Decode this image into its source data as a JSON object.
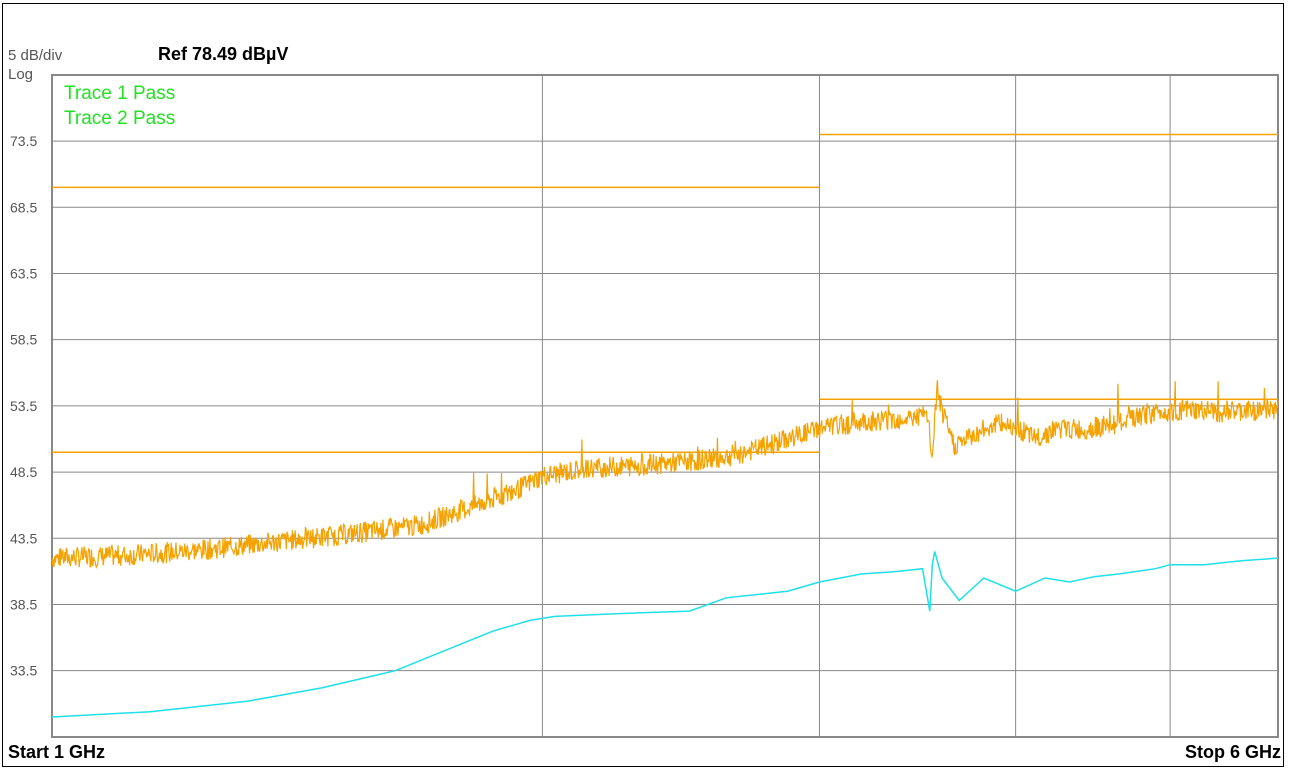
{
  "header": {
    "scale": "5 dB/div",
    "scale_type": "Log",
    "reference": "Ref 78.49 dBµV"
  },
  "footer": {
    "start": "Start 1 GHz",
    "stop": "Stop 6 GHz"
  },
  "colors": {
    "grid": "#888888",
    "trace1": "#f5a200",
    "trace2": "#1ee0e8",
    "limit": "#f5a200",
    "pass_text": "#22e022"
  },
  "chart_data": {
    "type": "line",
    "x_unit": "GHz",
    "y_unit": "dBµV",
    "xlim": [
      1,
      6
    ],
    "ylim": [
      28.49,
      78.49
    ],
    "y_ticks": [
      "73.5",
      "68.5",
      "63.5",
      "58.5",
      "53.5",
      "48.5",
      "43.5",
      "38.5",
      "33.5"
    ],
    "y_tick_values": [
      73.5,
      68.5,
      63.5,
      58.5,
      53.5,
      48.5,
      43.5,
      38.5,
      33.5
    ],
    "x_gridlines": [
      3,
      4.13,
      4.93,
      5.56
    ],
    "status": [
      "Trace 1 Pass",
      "Trace 2 Pass"
    ],
    "limit_lines": [
      {
        "segments": [
          [
            1,
            4.13,
            70.0
          ],
          [
            4.13,
            6,
            74.0
          ]
        ]
      },
      {
        "segments": [
          [
            1,
            4.13,
            50.0
          ],
          [
            4.13,
            6,
            54.0
          ]
        ]
      }
    ],
    "series": [
      {
        "x": [
          1.0,
          1.3,
          1.6,
          1.9,
          2.2,
          2.5,
          2.7,
          2.9,
          3.0,
          3.2,
          3.4,
          3.6,
          3.8,
          4.0,
          4.13,
          4.3,
          4.5,
          4.57,
          4.59,
          4.61,
          4.63,
          4.68,
          4.75,
          4.85,
          4.93,
          5.0,
          5.1,
          5.2,
          5.35,
          5.5,
          5.6,
          5.8,
          6.0
        ],
        "y": [
          42.0,
          42.2,
          42.6,
          43.2,
          43.8,
          44.5,
          45.8,
          47.2,
          48.2,
          48.8,
          49.0,
          49.3,
          49.8,
          51.0,
          51.8,
          52.3,
          52.6,
          52.8,
          49.5,
          55.0,
          53.0,
          50.5,
          51.2,
          52.2,
          52.0,
          51.0,
          51.8,
          51.7,
          52.2,
          53.0,
          53.2,
          53.0,
          53.3
        ]
      },
      {
        "x": [
          1.0,
          1.4,
          1.8,
          2.1,
          2.4,
          2.6,
          2.8,
          2.95,
          3.05,
          3.3,
          3.6,
          3.75,
          4.0,
          4.13,
          4.3,
          4.45,
          4.55,
          4.58,
          4.59,
          4.6,
          4.63,
          4.7,
          4.8,
          4.93,
          5.05,
          5.15,
          5.25,
          5.35,
          5.5,
          5.56,
          5.7,
          5.85,
          6.0
        ],
        "y": [
          30.0,
          30.4,
          31.2,
          32.2,
          33.5,
          35.0,
          36.5,
          37.3,
          37.6,
          37.8,
          38.0,
          39.0,
          39.5,
          40.2,
          40.8,
          41.0,
          41.2,
          38.0,
          41.5,
          42.5,
          40.5,
          38.8,
          40.5,
          39.5,
          40.5,
          40.2,
          40.6,
          40.8,
          41.2,
          41.5,
          41.5,
          41.8,
          42.0
        ]
      }
    ]
  }
}
